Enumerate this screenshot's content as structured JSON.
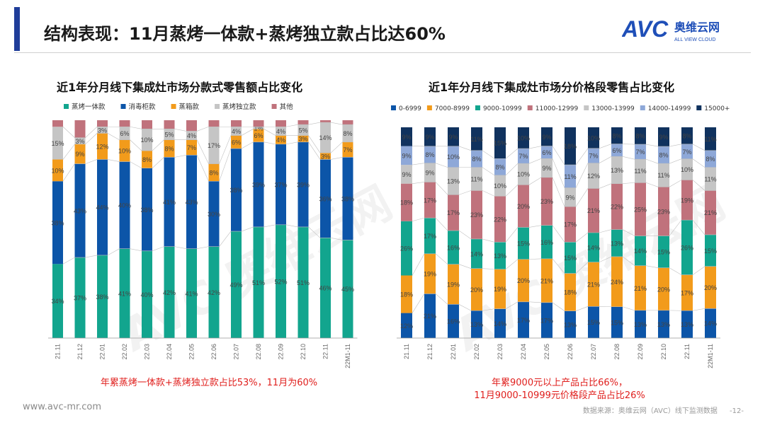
{
  "header": {
    "title": "结构表现：11月蒸烤一体款+蒸烤独立款占比达60%",
    "logo_text": "AVC",
    "logo_cn": "奥维云网",
    "logo_en": "ALL VIEW CLOUD"
  },
  "footer": {
    "website": "www.avc-mr.com",
    "source": "数据来源：奥维云网（AVC）线下监测数据",
    "page": "-12-"
  },
  "watermark": {
    "brand": "AVC 奥维云网",
    "en": "ALL VIEW CLOUD"
  },
  "notes": {
    "left": "年累蒸烤一体款+蒸烤独立款占比53%，11月为60%",
    "right_line1": "年累9000元以上产品占比66%，",
    "right_line2": "11月9000-10999元价格段产品占比26%"
  },
  "colors": {
    "left": [
      "#12a58e",
      "#0c55a8",
      "#f29b1b",
      "#c5c5c5",
      "#c0727c"
    ],
    "right": [
      "#0c55a8",
      "#f29b1b",
      "#12a58e",
      "#c0727c",
      "#c5c5c5",
      "#8ea8d8",
      "#10325e"
    ]
  },
  "chart_data": [
    {
      "type": "bar",
      "stacked": true,
      "percent": true,
      "title": "近1年分月线下集成灶市场分款式零售额占比变化",
      "categories": [
        "21.11",
        "21.12",
        "22.01",
        "22.02",
        "22.03",
        "22.04",
        "22.05",
        "22.06",
        "22.07",
        "22.08",
        "22.09",
        "22.10",
        "22.11",
        "22M1-11"
      ],
      "legend_position": "top",
      "series": [
        {
          "name": "蒸烤一体款",
          "values": [
            34,
            37,
            38,
            41,
            40,
            42,
            41,
            42,
            49,
            51,
            52,
            51,
            46,
            45
          ]
        },
        {
          "name": "消毒柜款",
          "values": [
            38,
            43,
            44,
            40,
            38,
            41,
            43,
            30,
            38,
            39,
            37,
            39,
            36,
            38
          ]
        },
        {
          "name": "蒸箱款",
          "values": [
            10,
            9,
            12,
            10,
            8,
            8,
            7,
            8,
            6,
            6,
            4,
            3,
            3,
            7
          ]
        },
        {
          "name": "蒸烤独立款",
          "values": [
            15,
            3,
            3,
            6,
            10,
            5,
            4,
            17,
            4,
            1,
            4,
            5,
            14,
            8
          ]
        },
        {
          "name": "其他",
          "values": [
            3,
            8,
            3,
            3,
            4,
            4,
            5,
            3,
            3,
            3,
            3,
            2,
            1,
            2
          ]
        }
      ],
      "labels_shown": [
        [
          "34%",
          "38%",
          "10%",
          "15%",
          ""
        ],
        [
          "37%",
          "43%",
          "9%",
          "3%",
          ""
        ],
        [
          "38%",
          "44%",
          "12%",
          "3%",
          ""
        ],
        [
          "41%",
          "40%",
          "10%",
          "6%",
          ""
        ],
        [
          "40%",
          "38%",
          "8%",
          "10%",
          ""
        ],
        [
          "42%",
          "41%",
          "8%",
          "5%",
          ""
        ],
        [
          "41%",
          "43%",
          "7%",
          "4%",
          ""
        ],
        [
          "42%",
          "30%",
          "8%",
          "17%",
          ""
        ],
        [
          "49%",
          "38%",
          "6%",
          "4%",
          ""
        ],
        [
          "51%",
          "39%",
          "6%",
          "1%",
          ""
        ],
        [
          "52%",
          "37%",
          "4%",
          "4%",
          ""
        ],
        [
          "51%",
          "39%",
          "3%",
          "5%",
          ""
        ],
        [
          "46%",
          "36%",
          "3%",
          "14%",
          ""
        ],
        [
          "45%",
          "38%",
          "7%",
          "8%",
          ""
        ]
      ]
    },
    {
      "type": "bar",
      "stacked": true,
      "percent": true,
      "title": "近1年分月线下集成灶市场分价格段零售占比变化",
      "categories": [
        "21.11",
        "21.12",
        "22.01",
        "22.02",
        "22.03",
        "22.04",
        "22.05",
        "22.06",
        "22.07",
        "22.08",
        "22.09",
        "22.10",
        "22.11",
        "22M1-11"
      ],
      "legend_position": "top",
      "series": [
        {
          "name": "0-6999",
          "values": [
            12,
            21,
            16,
            13,
            14,
            17,
            17,
            13,
            15,
            15,
            13,
            13,
            13,
            14
          ]
        },
        {
          "name": "7000-8999",
          "values": [
            18,
            19,
            19,
            20,
            19,
            20,
            21,
            18,
            21,
            24,
            21,
            20,
            17,
            20
          ]
        },
        {
          "name": "9000-10999",
          "values": [
            26,
            17,
            16,
            14,
            13,
            15,
            16,
            15,
            14,
            13,
            14,
            15,
            26,
            15
          ]
        },
        {
          "name": "11000-12999",
          "values": [
            18,
            17,
            17,
            23,
            22,
            20,
            23,
            17,
            21,
            22,
            25,
            23,
            19,
            21
          ]
        },
        {
          "name": "13000-13999",
          "values": [
            9,
            9,
            13,
            11,
            10,
            10,
            9,
            9,
            12,
            13,
            11,
            11,
            10,
            11
          ]
        },
        {
          "name": "14000-14999",
          "values": [
            9,
            8,
            10,
            8,
            8,
            7,
            6,
            11,
            7,
            6,
            7,
            8,
            7,
            8
          ]
        },
        {
          "name": "15000+",
          "values": [
            9,
            9,
            9,
            11,
            15,
            10,
            9,
            18,
            10,
            8,
            8,
            9,
            8,
            11
          ]
        }
      ],
      "labels_shown": [
        [
          "12%",
          "18%",
          "26%",
          "18%",
          "9%",
          "9%",
          "9%"
        ],
        [
          "21%",
          "19%",
          "17%",
          "17%",
          "9%",
          "8%",
          "9%"
        ],
        [
          "16%",
          "19%",
          "16%",
          "17%",
          "13%",
          "10%",
          "9%"
        ],
        [
          "13%",
          "20%",
          "14%",
          "23%",
          "11%",
          "8%",
          "11%"
        ],
        [
          "14%",
          "19%",
          "13%",
          "22%",
          "10%",
          "8%",
          "15%"
        ],
        [
          "17%",
          "20%",
          "15%",
          "20%",
          "10%",
          "7%",
          "10%"
        ],
        [
          "17%",
          "21%",
          "16%",
          "23%",
          "9%",
          "6%",
          "9%"
        ],
        [
          "13%",
          "18%",
          "15%",
          "17%",
          "9%",
          "11%",
          "18%"
        ],
        [
          "15%",
          "21%",
          "14%",
          "21%",
          "12%",
          "7%",
          "10%"
        ],
        [
          "15%",
          "24%",
          "13%",
          "22%",
          "13%",
          "6%",
          "8%"
        ],
        [
          "13%",
          "21%",
          "14%",
          "25%",
          "11%",
          "7%",
          "8%"
        ],
        [
          "13%",
          "20%",
          "15%",
          "23%",
          "11%",
          "8%",
          "9%"
        ],
        [
          "13%",
          "17%",
          "26%",
          "19%",
          "10%",
          "7%",
          "8%"
        ],
        [
          "14%",
          "20%",
          "15%",
          "21%",
          "11%",
          "8%",
          "11%"
        ]
      ]
    }
  ]
}
